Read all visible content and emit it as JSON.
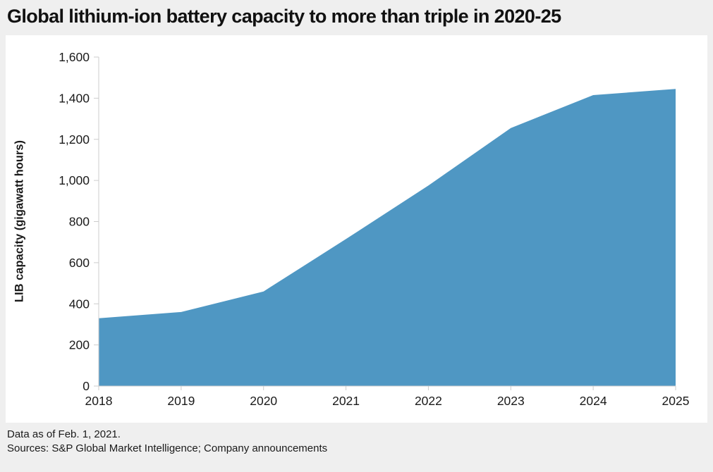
{
  "title": "Global lithium-ion battery capacity to more than triple in 2020-25",
  "footer": {
    "line1": "Data as of Feb. 1, 2021.",
    "line2": "Sources: S&P Global Market Intelligence; Company announcements"
  },
  "chart_data": {
    "type": "area",
    "title": "Global lithium-ion battery capacity to more than triple in 2020-25",
    "categories": [
      "2018",
      "2019",
      "2020",
      "2021",
      "2022",
      "2023",
      "2024",
      "2025"
    ],
    "series": [
      {
        "name": "LIB capacity",
        "values": [
          330,
          360,
          460,
          715,
          975,
          1255,
          1415,
          1445
        ]
      }
    ],
    "xlabel": "",
    "ylabel": "LIB capacity (gigawatt hours)",
    "ylim": [
      0,
      1600
    ],
    "ytick_step": 200,
    "yticks": [
      "0",
      "200",
      "400",
      "600",
      "800",
      "1,000",
      "1,200",
      "1,400",
      "1,600"
    ],
    "grid": false,
    "legend": "none",
    "colors": {
      "area": "#4f97c3",
      "axis": "#cccccc",
      "text": "#1a1a1a",
      "plot_background": "#ffffff",
      "page_background": "#efefef"
    }
  }
}
